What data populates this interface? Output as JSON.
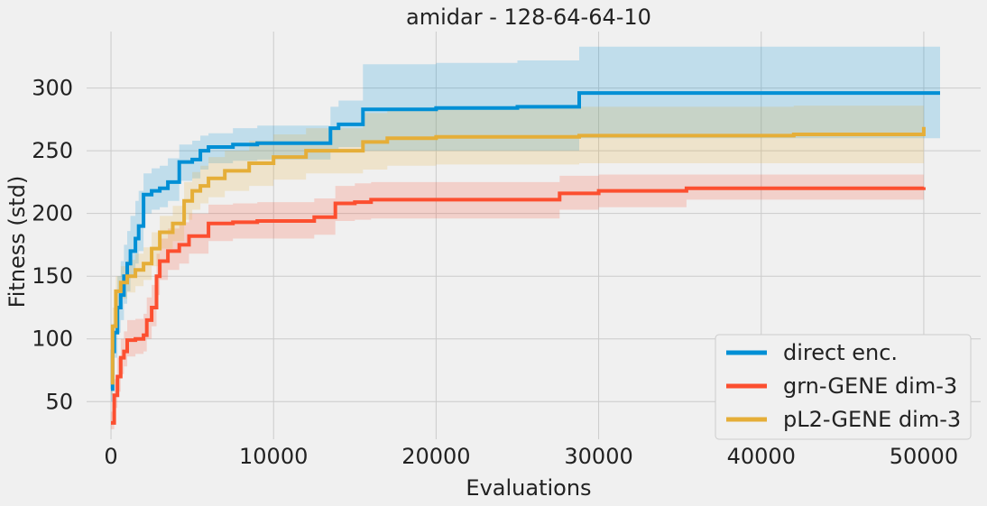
{
  "chart_data": {
    "type": "line",
    "title": "amidar - 128-64-64-10",
    "xlabel": "Evaluations",
    "ylabel": "Fitness (std)",
    "xlim": [
      -1500,
      53500
    ],
    "ylim": [
      20,
      345
    ],
    "xticks": [
      0,
      10000,
      20000,
      30000,
      40000,
      50000
    ],
    "yticks": [
      50,
      100,
      150,
      200,
      250,
      300
    ],
    "grid": true,
    "legend_position": "lower-right",
    "series": [
      {
        "name": "direct enc.",
        "color": "#008fd5",
        "x": [
          0,
          100,
          200,
          400,
          600,
          800,
          1000,
          1200,
          1500,
          1700,
          2000,
          2500,
          3000,
          3500,
          4200,
          5000,
          5500,
          6000,
          7500,
          9000,
          12000,
          13500,
          14000,
          15500,
          20000,
          25000,
          28800,
          51000
        ],
        "y": [
          60,
          90,
          105,
          125,
          135,
          150,
          160,
          170,
          180,
          190,
          215,
          218,
          220,
          225,
          241,
          243,
          250,
          253,
          255,
          256,
          256,
          268,
          271,
          283,
          284,
          285,
          296,
          296
        ],
        "upper": [
          72,
          112,
          128,
          150,
          162,
          175,
          186,
          198,
          210,
          218,
          232,
          236,
          238,
          244,
          255,
          258,
          262,
          264,
          268,
          270,
          270,
          285,
          290,
          319,
          320,
          322,
          333,
          333
        ],
        "lower": [
          50,
          70,
          85,
          105,
          115,
          128,
          138,
          150,
          160,
          170,
          200,
          203,
          205,
          210,
          226,
          228,
          235,
          240,
          242,
          243,
          243,
          251,
          253,
          250,
          250,
          250,
          260,
          260
        ]
      },
      {
        "name": "grn-GENE dim-3",
        "color": "#fc4f30",
        "x": [
          0,
          200,
          400,
          600,
          800,
          1000,
          1500,
          2000,
          2200,
          2500,
          2800,
          3000,
          3500,
          4200,
          4800,
          5500,
          6000,
          7500,
          9000,
          12000,
          12500,
          13800,
          15000,
          16000,
          20000,
          27600,
          30000,
          35400,
          50000
        ],
        "y": [
          33,
          55,
          70,
          85,
          90,
          99,
          100,
          103,
          115,
          125,
          150,
          162,
          170,
          175,
          182,
          182,
          192,
          193,
          194,
          194,
          197,
          208,
          209,
          211,
          211,
          216,
          218,
          220,
          221
        ],
        "upper": [
          42,
          68,
          85,
          100,
          106,
          115,
          116,
          120,
          133,
          143,
          168,
          180,
          188,
          193,
          200,
          200,
          207,
          208,
          209,
          209,
          212,
          222,
          224,
          225,
          225,
          230,
          231,
          231,
          231
        ],
        "lower": [
          28,
          45,
          58,
          72,
          78,
          86,
          88,
          90,
          100,
          110,
          135,
          147,
          155,
          160,
          168,
          168,
          178,
          180,
          180,
          180,
          183,
          194,
          195,
          196,
          196,
          203,
          205,
          211,
          212
        ]
      },
      {
        "name": "pL2-GENE dim-3",
        "color": "#e5ae38",
        "x": [
          0,
          100,
          300,
          600,
          1000,
          1500,
          2000,
          2500,
          3000,
          3800,
          4500,
          5000,
          5500,
          6000,
          7000,
          8500,
          10000,
          12000,
          15500,
          17000,
          20000,
          28800,
          42000,
          50000
        ],
        "y": [
          65,
          110,
          138,
          145,
          150,
          155,
          160,
          172,
          185,
          192,
          210,
          218,
          222,
          228,
          234,
          240,
          245,
          250,
          257,
          260,
          261,
          262,
          263,
          269
        ],
        "upper": [
          80,
          125,
          150,
          158,
          163,
          168,
          173,
          185,
          198,
          206,
          225,
          233,
          238,
          245,
          250,
          258,
          263,
          268,
          280,
          283,
          284,
          285,
          286,
          289
        ],
        "lower": [
          55,
          95,
          125,
          132,
          137,
          142,
          147,
          158,
          172,
          178,
          195,
          203,
          208,
          213,
          218,
          222,
          227,
          232,
          235,
          238,
          239,
          240,
          240,
          246
        ]
      }
    ]
  }
}
